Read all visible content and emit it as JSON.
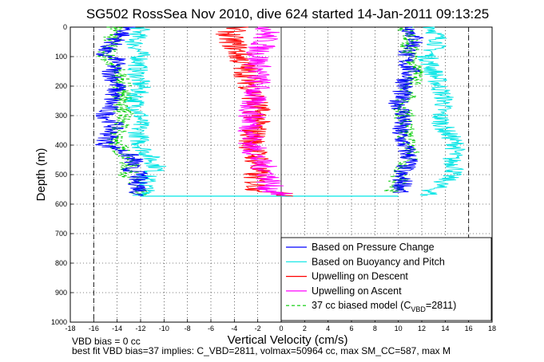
{
  "chart_data": {
    "type": "line",
    "title": "SG502 RossSea Nov 2010, dive 624 started 14-Jan-2011 09:13:25",
    "xlabel": "Vertical Velocity (cm/s)",
    "ylabel": "Depth (m)",
    "xlim": [
      -18,
      18
    ],
    "ylim": [
      0,
      1000
    ],
    "y_reversed": true,
    "grid": true,
    "legend_position": "bottom-right",
    "xticks": [
      "-18",
      "-16",
      "-14",
      "-12",
      "-10",
      "-8",
      "-6",
      "-4",
      "-2",
      "0",
      "2",
      "4",
      "6",
      "8",
      "10",
      "12",
      "14",
      "16",
      "18"
    ],
    "yticks": [
      "0",
      "100",
      "200",
      "300",
      "400",
      "500",
      "600",
      "700",
      "800",
      "900",
      "1000"
    ],
    "reference_lines": [
      -16,
      16
    ],
    "series": [
      {
        "name": "Based on Pressure Change",
        "color": "#0000ff",
        "style": "solid",
        "descent": [
          [
            -13,
            0
          ],
          [
            -13.5,
            20
          ],
          [
            -14,
            40
          ],
          [
            -14.5,
            60
          ],
          [
            -15.5,
            90
          ],
          [
            -14,
            110
          ],
          [
            -14.5,
            150
          ],
          [
            -14,
            200
          ],
          [
            -14.5,
            250
          ],
          [
            -15,
            300
          ],
          [
            -14.2,
            330
          ],
          [
            -14.5,
            350
          ],
          [
            -15,
            400
          ],
          [
            -13.5,
            420
          ],
          [
            -12.5,
            450
          ],
          [
            -13,
            480
          ],
          [
            -12,
            500
          ],
          [
            -12.5,
            520
          ],
          [
            -12,
            540
          ],
          [
            -12.2,
            570
          ]
        ],
        "ascent": [
          [
            11,
            0
          ],
          [
            11.5,
            50
          ],
          [
            10.5,
            100
          ],
          [
            11,
            150
          ],
          [
            10.5,
            200
          ],
          [
            10,
            250
          ],
          [
            10.5,
            300
          ],
          [
            10,
            350
          ],
          [
            10.5,
            400
          ],
          [
            11,
            450
          ],
          [
            10.5,
            480
          ],
          [
            10,
            500
          ],
          [
            10.5,
            530
          ],
          [
            10.2,
            560
          ]
        ]
      },
      {
        "name": "Based on Buoyancy and Pitch",
        "color": "#00e5e5",
        "style": "solid",
        "descent": [
          [
            -12,
            0
          ],
          [
            -12.5,
            50
          ],
          [
            -12,
            100
          ],
          [
            -12.3,
            150
          ],
          [
            -12,
            200
          ],
          [
            -12.5,
            250
          ],
          [
            -12,
            300
          ],
          [
            -12.2,
            350
          ],
          [
            -12,
            400
          ],
          [
            -11,
            450
          ],
          [
            -10.5,
            480
          ],
          [
            -11.5,
            500
          ],
          [
            -11.5,
            540
          ],
          [
            -11.8,
            570
          ]
        ],
        "ascent": [
          [
            13,
            0
          ],
          [
            13.5,
            50
          ],
          [
            12.5,
            100
          ],
          [
            13,
            150
          ],
          [
            13.5,
            200
          ],
          [
            14,
            250
          ],
          [
            13.5,
            300
          ],
          [
            14,
            350
          ],
          [
            15,
            400
          ],
          [
            14.5,
            450
          ],
          [
            15,
            480
          ],
          [
            14,
            520
          ],
          [
            13,
            550
          ],
          [
            12.5,
            570
          ]
        ]
      },
      {
        "name": "Upwelling on Descent",
        "color": "#ff0000",
        "style": "solid",
        "profile": [
          [
            -4,
            0
          ],
          [
            -4.5,
            30
          ],
          [
            -4,
            60
          ],
          [
            -3.5,
            100
          ],
          [
            -3,
            150
          ],
          [
            -2.5,
            200
          ],
          [
            -2.2,
            250
          ],
          [
            -2,
            300
          ],
          [
            -2.3,
            350
          ],
          [
            -2.5,
            400
          ],
          [
            -2,
            450
          ],
          [
            -2.2,
            500
          ],
          [
            -2,
            550
          ],
          [
            1,
            573
          ]
        ]
      },
      {
        "name": "Upwelling on Ascent",
        "color": "#ff00ff",
        "style": "solid",
        "profile": [
          [
            -1,
            0
          ],
          [
            -1.5,
            50
          ],
          [
            -2,
            100
          ],
          [
            -2,
            150
          ],
          [
            -2,
            200
          ],
          [
            -2.5,
            250
          ],
          [
            -2.5,
            300
          ],
          [
            -2.5,
            350
          ],
          [
            -2.5,
            400
          ],
          [
            -2,
            450
          ],
          [
            -1,
            500
          ],
          [
            -1,
            550
          ],
          [
            0,
            570
          ]
        ]
      },
      {
        "name": "37 cc biased model (C",
        "name_subscript": "VBD",
        "name_suffix": "=2811)",
        "color": "#00cc00",
        "style": "dashed",
        "descent": [
          [
            -14,
            0
          ],
          [
            -14.5,
            50
          ],
          [
            -15,
            100
          ],
          [
            -14,
            150
          ],
          [
            -13.5,
            200
          ],
          [
            -13.5,
            250
          ],
          [
            -13.5,
            300
          ],
          [
            -14,
            350
          ],
          [
            -14,
            400
          ],
          [
            -13,
            450
          ],
          [
            -13,
            500
          ],
          [
            -12.5,
            550
          ],
          [
            -12,
            570
          ]
        ],
        "ascent": [
          [
            10.5,
            0
          ],
          [
            11,
            50
          ],
          [
            11,
            100
          ],
          [
            11.5,
            150
          ],
          [
            11,
            200
          ],
          [
            10.5,
            250
          ],
          [
            10.5,
            300
          ],
          [
            10.5,
            350
          ],
          [
            11,
            400
          ],
          [
            11,
            450
          ],
          [
            10,
            500
          ],
          [
            10,
            530
          ],
          [
            9.5,
            560
          ]
        ]
      }
    ],
    "bottom_crossing": {
      "depth": 573,
      "x_from": -12,
      "x_to": 10
    }
  },
  "footer": {
    "line1": "VBD bias = 0 cc",
    "line2": "best fit VBD bias=37 implies: C_VBD=2811, volmax=50964 cc, max SM_CC=587, max M"
  }
}
